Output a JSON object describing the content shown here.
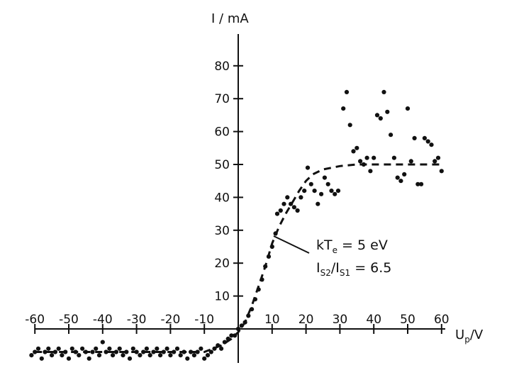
{
  "chart_data": {
    "type": "scatter",
    "title": "",
    "xlabel": {
      "main": "U",
      "sub": "p",
      "unit": "/V"
    },
    "ylabel": "I / mA",
    "xlim": [
      -62,
      62
    ],
    "ylim": [
      -12,
      92
    ],
    "x_ticks": [
      -60,
      -50,
      -40,
      -30,
      -20,
      -10,
      10,
      20,
      30,
      40,
      50,
      60
    ],
    "x_tick_labels": [
      "-60",
      "-50",
      "-40",
      "-30",
      "-20",
      "-10",
      "10",
      "20",
      "30",
      "40",
      "50",
      "60"
    ],
    "y_ticks": [
      10,
      20,
      30,
      40,
      50,
      60,
      70,
      80
    ],
    "y_tick_labels": [
      "10",
      "20",
      "30",
      "40",
      "50",
      "60",
      "70",
      "80"
    ],
    "grid": false,
    "legend": "none",
    "fit_curve": {
      "name": "fit",
      "style": "dashed",
      "points": [
        [
          -60,
          -7
        ],
        [
          -50,
          -7
        ],
        [
          -40,
          -7
        ],
        [
          -30,
          -7
        ],
        [
          -20,
          -7
        ],
        [
          -10,
          -7
        ],
        [
          -5,
          -5
        ],
        [
          -2,
          -3
        ],
        [
          0,
          -1
        ],
        [
          2,
          2
        ],
        [
          4,
          7
        ],
        [
          6,
          13
        ],
        [
          8,
          19
        ],
        [
          10,
          26
        ],
        [
          12,
          31
        ],
        [
          14,
          35
        ],
        [
          16,
          38.5
        ],
        [
          18,
          42
        ],
        [
          20,
          45
        ],
        [
          22,
          47
        ],
        [
          25,
          48.5
        ],
        [
          30,
          49.5
        ],
        [
          35,
          50
        ],
        [
          40,
          50
        ],
        [
          45,
          50
        ],
        [
          50,
          50
        ],
        [
          55,
          50
        ],
        [
          60,
          50
        ]
      ]
    },
    "series": [
      {
        "name": "measured",
        "points": [
          [
            -61,
            -8
          ],
          [
            -60,
            -7
          ],
          [
            -59,
            -6
          ],
          [
            -58,
            -9
          ],
          [
            -57,
            -7
          ],
          [
            -56,
            -6
          ],
          [
            -55,
            -8
          ],
          [
            -54,
            -7
          ],
          [
            -53,
            -6
          ],
          [
            -52,
            -8
          ],
          [
            -51,
            -7
          ],
          [
            -50,
            -9
          ],
          [
            -49,
            -6
          ],
          [
            -48,
            -7
          ],
          [
            -47,
            -8
          ],
          [
            -46,
            -6
          ],
          [
            -45,
            -7
          ],
          [
            -44,
            -9
          ],
          [
            -43,
            -7
          ],
          [
            -42,
            -6
          ],
          [
            -41,
            -8
          ],
          [
            -40,
            -4
          ],
          [
            -39,
            -7
          ],
          [
            -38,
            -6
          ],
          [
            -37,
            -8
          ],
          [
            -36,
            -7
          ],
          [
            -35,
            -6
          ],
          [
            -34,
            -8
          ],
          [
            -33,
            -7
          ],
          [
            -32,
            -9
          ],
          [
            -31,
            -6
          ],
          [
            -30,
            -7
          ],
          [
            -29,
            -8
          ],
          [
            -28,
            -7
          ],
          [
            -27,
            -6
          ],
          [
            -26,
            -8
          ],
          [
            -25,
            -7
          ],
          [
            -24,
            -6
          ],
          [
            -23,
            -8
          ],
          [
            -22,
            -7
          ],
          [
            -21,
            -6
          ],
          [
            -20,
            -8
          ],
          [
            -19,
            -7
          ],
          [
            -18,
            -6
          ],
          [
            -17,
            -8
          ],
          [
            -16,
            -7
          ],
          [
            -15,
            -9
          ],
          [
            -14,
            -7
          ],
          [
            -13,
            -8
          ],
          [
            -12,
            -7
          ],
          [
            -11,
            -6
          ],
          [
            -10,
            -9
          ],
          [
            -9,
            -8
          ],
          [
            -8,
            -7
          ],
          [
            -7,
            -6
          ],
          [
            -6,
            -5
          ],
          [
            -5,
            -6
          ],
          [
            -4,
            -4
          ],
          [
            -3,
            -3
          ],
          [
            -2,
            -2
          ],
          [
            -1,
            -2
          ],
          [
            0,
            0
          ],
          [
            1,
            1
          ],
          [
            2,
            2
          ],
          [
            3,
            4
          ],
          [
            4,
            6
          ],
          [
            5,
            9
          ],
          [
            6,
            12
          ],
          [
            7,
            15
          ],
          [
            8,
            19
          ],
          [
            9,
            22
          ],
          [
            10,
            25
          ],
          [
            11,
            29
          ],
          [
            11.5,
            35
          ],
          [
            12.5,
            36
          ],
          [
            13.5,
            38
          ],
          [
            14.5,
            40
          ],
          [
            15.5,
            38
          ],
          [
            16.5,
            37
          ],
          [
            17.5,
            36
          ],
          [
            18.5,
            40
          ],
          [
            19.5,
            42
          ],
          [
            20.5,
            49
          ],
          [
            21.5,
            44
          ],
          [
            22.5,
            42
          ],
          [
            23.5,
            38
          ],
          [
            24.5,
            41
          ],
          [
            25.5,
            46
          ],
          [
            26.5,
            44
          ],
          [
            27.5,
            42
          ],
          [
            28.5,
            41
          ],
          [
            29.5,
            42
          ],
          [
            31,
            67
          ],
          [
            32,
            72
          ],
          [
            33,
            62
          ],
          [
            34,
            54
          ],
          [
            35,
            55
          ],
          [
            36,
            51
          ],
          [
            37,
            50
          ],
          [
            38,
            52
          ],
          [
            39,
            48
          ],
          [
            40,
            52
          ],
          [
            41,
            65
          ],
          [
            42,
            64
          ],
          [
            43,
            72
          ],
          [
            44,
            66
          ],
          [
            45,
            59
          ],
          [
            46,
            52
          ],
          [
            47,
            46
          ],
          [
            48,
            45
          ],
          [
            49,
            47
          ],
          [
            50,
            67
          ],
          [
            51,
            51
          ],
          [
            52,
            58
          ],
          [
            53,
            44
          ],
          [
            54,
            44
          ],
          [
            55,
            58
          ],
          [
            56,
            57
          ],
          [
            57,
            56
          ],
          [
            58,
            51
          ],
          [
            59,
            52
          ],
          [
            60,
            48
          ]
        ]
      }
    ],
    "annotations": [
      {
        "id": "kte",
        "text": {
          "main": "kT",
          "sub": "e",
          "rest": " = 5 eV"
        }
      },
      {
        "id": "ratio",
        "text": {
          "a": "I",
          "a_sub": "S2",
          "slash": "/",
          "b": "I",
          "b_sub": "S1",
          "rest": " = 6.5"
        }
      }
    ]
  }
}
